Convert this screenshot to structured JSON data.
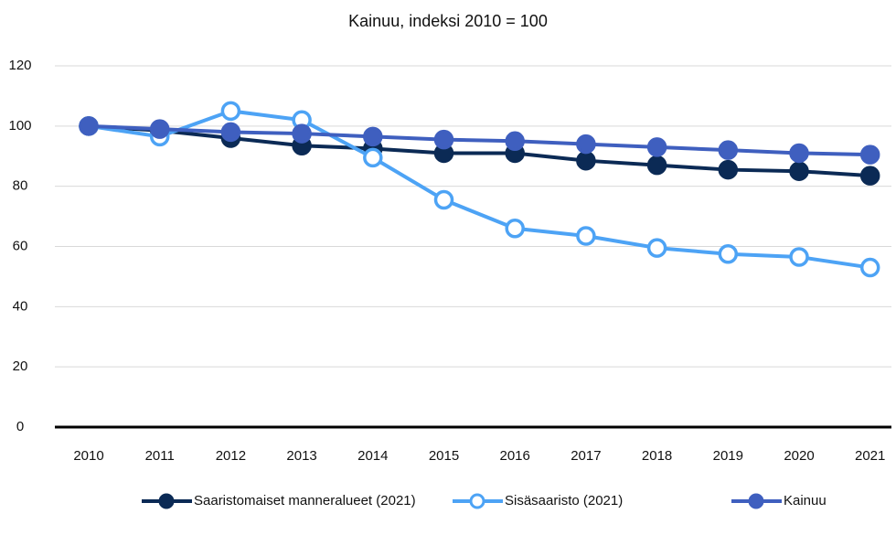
{
  "chart_data": {
    "type": "line",
    "title": "Kainuu, indeksi 2010 = 100",
    "categories": [
      "2010",
      "2011",
      "2012",
      "2013",
      "2014",
      "2015",
      "2016",
      "2017",
      "2018",
      "2019",
      "2020",
      "2021"
    ],
    "series": [
      {
        "name": "Saaristomaiset manneralueet (2021)",
        "color": "#0b2a55",
        "values": [
          100,
          98.5,
          96,
          93.5,
          92.5,
          91,
          91,
          88.5,
          87,
          85.5,
          85,
          83.5
        ]
      },
      {
        "name": "Sisäsaaristo (2021)",
        "color": "#4da3f5",
        "marker_fill": "#ffffff",
        "values": [
          100,
          96.5,
          105,
          102,
          89.5,
          75.5,
          66,
          63.5,
          59.5,
          57.5,
          56.5,
          53
        ]
      },
      {
        "name": "Kainuu",
        "color": "#3f5fbf",
        "values": [
          100,
          99,
          98,
          97.5,
          96.5,
          95.5,
          95,
          94,
          93,
          92,
          91,
          90.5
        ]
      }
    ],
    "ylim": [
      0,
      120
    ],
    "yticks": [
      0,
      20,
      40,
      60,
      80,
      100,
      120
    ],
    "grid": true,
    "legend": "bottom"
  }
}
